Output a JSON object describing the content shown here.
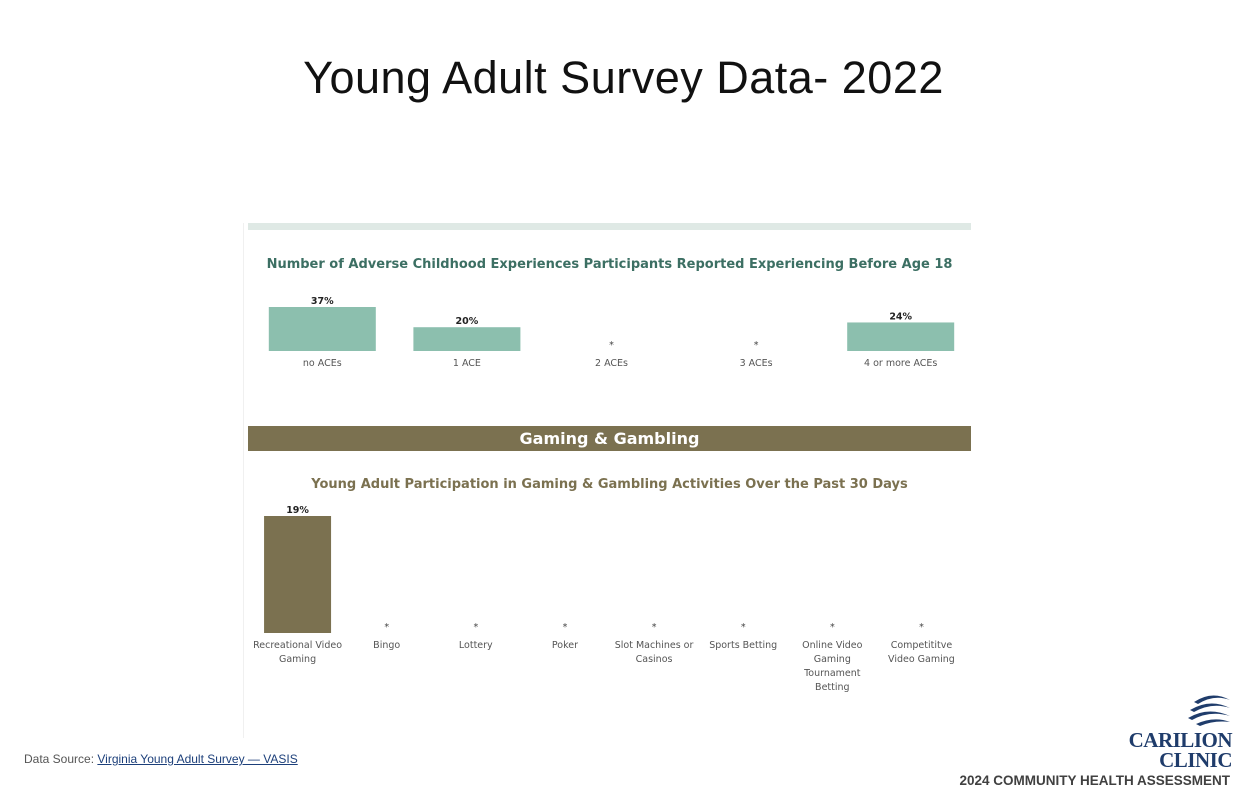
{
  "slide_title": "Young Adult Survey Data- 2022",
  "section_header": "Gaming & Gambling",
  "colors": {
    "ace_bar": "#8cbfae",
    "gaming_bar": "#7b7150",
    "ace_title": "#3c6f63",
    "gaming_title": "#7b7150",
    "logo": "#1f3c6b"
  },
  "chart_data": [
    {
      "type": "bar",
      "title": "Number of Adverse Childhood Experiences Participants Reported Experiencing Before Age 18",
      "categories": [
        "no ACEs",
        "1 ACE",
        "2 ACEs",
        "3 ACEs",
        "4 or more ACEs"
      ],
      "values": [
        37,
        20,
        null,
        null,
        24
      ],
      "labels": [
        "37%",
        "20%",
        "*",
        "*",
        "24%"
      ],
      "unit": "%",
      "ylim": [
        0,
        37
      ],
      "xlabel": "",
      "ylabel": ""
    },
    {
      "type": "bar",
      "title": "Young Adult Participation in Gaming & Gambling Activities Over the Past 30 Days",
      "categories": [
        "Recreational Video Gaming",
        "Bingo",
        "Lottery",
        "Poker",
        "Slot Machines or Casinos",
        "Sports Betting",
        "Online Video Gaming Tournament Betting",
        "Competititve Video Gaming"
      ],
      "category_lines": [
        [
          "Recreational Video",
          "Gaming"
        ],
        [
          "Bingo"
        ],
        [
          "Lottery"
        ],
        [
          "Poker"
        ],
        [
          "Slot Machines or",
          "Casinos"
        ],
        [
          "Sports Betting"
        ],
        [
          "Online Video",
          "Gaming",
          "Tournament",
          "Betting"
        ],
        [
          "Competititve",
          "Video Gaming"
        ]
      ],
      "values": [
        19,
        null,
        null,
        null,
        null,
        null,
        null,
        null
      ],
      "labels": [
        "19%",
        "*",
        "*",
        "*",
        "*",
        "*",
        "*",
        "*"
      ],
      "unit": "%",
      "ylim": [
        0,
        19
      ],
      "xlabel": "",
      "ylabel": ""
    }
  ],
  "footer": {
    "source_prefix": "Data Source: ",
    "source_link": "Virginia Young Adult Survey — VASIS",
    "logo_line1": "CARILION",
    "logo_line2": "CLINIC",
    "assessment_label": "2024 COMMUNITY HEALTH ASSESSMENT"
  }
}
